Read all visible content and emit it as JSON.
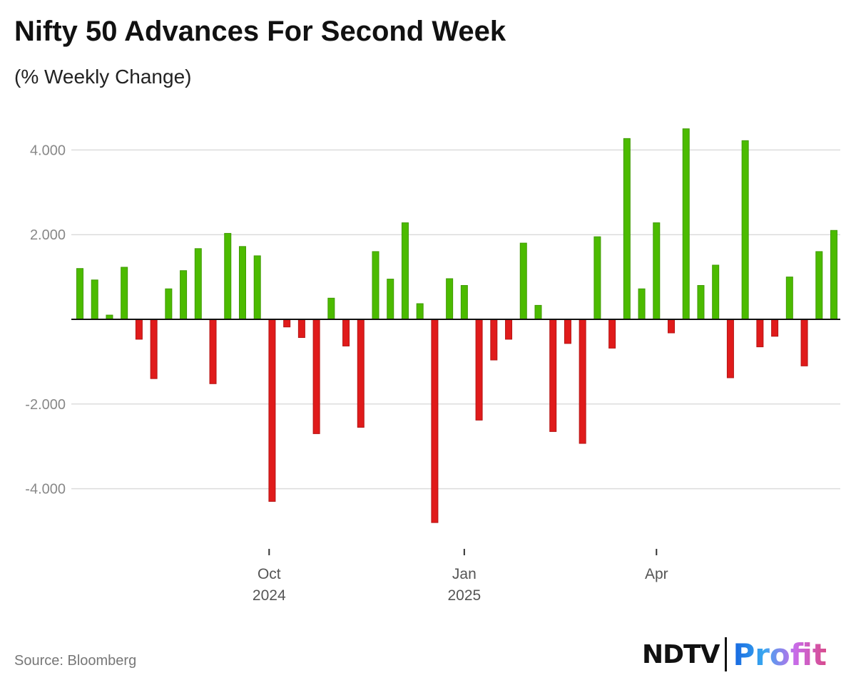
{
  "chart_data": {
    "type": "bar",
    "title": "Nifty 50 Advances For Second Week",
    "subtitle": "(% Weekly Change)",
    "xlabel": "",
    "ylabel": "",
    "ylim": [
      -5.2,
      4.8
    ],
    "yticks": [
      4,
      2,
      -2,
      -4
    ],
    "ytick_labels": [
      "4.000",
      "2.000",
      "-2.000",
      "-4.000"
    ],
    "xticks": [
      {
        "label": "Oct",
        "year": "2024",
        "week_index": 12.8
      },
      {
        "label": "Jan",
        "year": "2025",
        "week_index": 26
      },
      {
        "label": "Apr",
        "year": "",
        "week_index": 39
      }
    ],
    "grid": true,
    "positive_color": "#4cbb00",
    "negative_color": "#e01b1b",
    "values": [
      1.2,
      0.93,
      0.1,
      1.23,
      -0.47,
      -1.4,
      0.72,
      1.15,
      1.67,
      -1.52,
      2.03,
      1.72,
      1.5,
      -4.3,
      -0.18,
      -0.43,
      -2.7,
      0.5,
      -0.63,
      -2.55,
      1.6,
      0.95,
      2.28,
      0.37,
      -4.8,
      0.96,
      0.8,
      -2.38,
      -0.96,
      -0.47,
      1.8,
      0.33,
      -2.65,
      -0.57,
      -2.93,
      1.95,
      -0.68,
      4.27,
      0.72,
      2.28,
      -0.32,
      4.5,
      0.8,
      1.28,
      -1.38,
      4.22,
      -0.65,
      -0.4,
      1.0,
      -1.1,
      1.6,
      2.1
    ]
  },
  "footer": {
    "source": "Source: Bloomberg",
    "logo_left": "NDTV",
    "logo_right": "Profit"
  }
}
